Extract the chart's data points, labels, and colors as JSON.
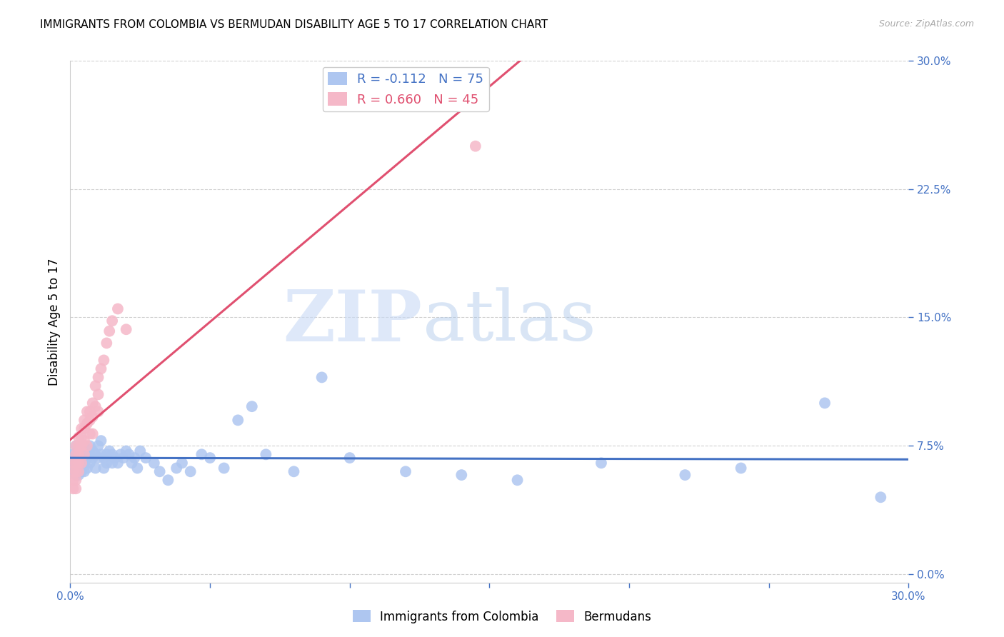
{
  "title": "IMMIGRANTS FROM COLOMBIA VS BERMUDAN DISABILITY AGE 5 TO 17 CORRELATION CHART",
  "source": "Source: ZipAtlas.com",
  "ylabel": "Disability Age 5 to 17",
  "xlim": [
    0.0,
    0.3
  ],
  "ylim": [
    -0.005,
    0.3
  ],
  "yticks": [
    0.0,
    0.075,
    0.15,
    0.225,
    0.3
  ],
  "ytick_labels": [
    "0.0%",
    "7.5%",
    "15.0%",
    "22.5%",
    "30.0%"
  ],
  "xticks": [
    0.0,
    0.05,
    0.1,
    0.15,
    0.2,
    0.25,
    0.3
  ],
  "xtick_labels": [
    "0.0%",
    "",
    "",
    "",
    "",
    "",
    "30.0%"
  ],
  "legend_entries": [
    {
      "label": "R = -0.112   N = 75",
      "color": "#aec6f0"
    },
    {
      "label": "R = 0.660   N = 45",
      "color": "#f5b8c8"
    }
  ],
  "watermark_zip": "ZIP",
  "watermark_atlas": "atlas",
  "colombia_color": "#aec6f0",
  "colombia_line": "#4472c4",
  "bermuda_color": "#f5b8c8",
  "bermuda_line": "#e05070",
  "tick_color": "#4472c4",
  "grid_color": "#d0d0d0",
  "background_color": "#ffffff",
  "title_fontsize": 11,
  "label_fontsize": 12,
  "tick_fontsize": 11,
  "legend_fontsize": 13,
  "colombia_x": [
    0.001,
    0.001,
    0.001,
    0.002,
    0.002,
    0.002,
    0.002,
    0.003,
    0.003,
    0.003,
    0.003,
    0.003,
    0.004,
    0.004,
    0.004,
    0.004,
    0.005,
    0.005,
    0.005,
    0.005,
    0.006,
    0.006,
    0.006,
    0.007,
    0.007,
    0.007,
    0.008,
    0.008,
    0.009,
    0.009,
    0.01,
    0.01,
    0.011,
    0.011,
    0.012,
    0.012,
    0.013,
    0.013,
    0.014,
    0.015,
    0.015,
    0.016,
    0.017,
    0.018,
    0.019,
    0.02,
    0.021,
    0.022,
    0.023,
    0.024,
    0.025,
    0.027,
    0.03,
    0.032,
    0.035,
    0.038,
    0.04,
    0.043,
    0.047,
    0.05,
    0.055,
    0.06,
    0.065,
    0.07,
    0.08,
    0.09,
    0.1,
    0.12,
    0.14,
    0.16,
    0.19,
    0.22,
    0.24,
    0.27,
    0.29
  ],
  "colombia_y": [
    0.07,
    0.065,
    0.06,
    0.075,
    0.068,
    0.062,
    0.058,
    0.072,
    0.068,
    0.065,
    0.062,
    0.058,
    0.075,
    0.07,
    0.065,
    0.06,
    0.075,
    0.07,
    0.065,
    0.06,
    0.072,
    0.068,
    0.062,
    0.075,
    0.07,
    0.065,
    0.072,
    0.068,
    0.07,
    0.062,
    0.075,
    0.068,
    0.078,
    0.07,
    0.068,
    0.062,
    0.07,
    0.065,
    0.072,
    0.07,
    0.065,
    0.068,
    0.065,
    0.07,
    0.068,
    0.072,
    0.07,
    0.065,
    0.068,
    0.062,
    0.072,
    0.068,
    0.065,
    0.06,
    0.055,
    0.062,
    0.065,
    0.06,
    0.07,
    0.068,
    0.062,
    0.09,
    0.098,
    0.07,
    0.06,
    0.115,
    0.068,
    0.06,
    0.058,
    0.055,
    0.065,
    0.058,
    0.062,
    0.1,
    0.045
  ],
  "bermuda_x": [
    0.001,
    0.001,
    0.001,
    0.001,
    0.002,
    0.002,
    0.002,
    0.002,
    0.002,
    0.002,
    0.003,
    0.003,
    0.003,
    0.003,
    0.003,
    0.004,
    0.004,
    0.004,
    0.004,
    0.005,
    0.005,
    0.005,
    0.005,
    0.006,
    0.006,
    0.006,
    0.007,
    0.007,
    0.007,
    0.008,
    0.008,
    0.008,
    0.009,
    0.009,
    0.01,
    0.01,
    0.01,
    0.011,
    0.012,
    0.013,
    0.014,
    0.015,
    0.017,
    0.02,
    0.145
  ],
  "bermuda_y": [
    0.065,
    0.06,
    0.055,
    0.05,
    0.075,
    0.07,
    0.065,
    0.06,
    0.055,
    0.05,
    0.08,
    0.075,
    0.07,
    0.065,
    0.06,
    0.085,
    0.08,
    0.075,
    0.065,
    0.09,
    0.085,
    0.078,
    0.07,
    0.095,
    0.088,
    0.075,
    0.095,
    0.09,
    0.082,
    0.1,
    0.092,
    0.082,
    0.11,
    0.098,
    0.115,
    0.105,
    0.095,
    0.12,
    0.125,
    0.135,
    0.142,
    0.148,
    0.155,
    0.143,
    0.25
  ]
}
